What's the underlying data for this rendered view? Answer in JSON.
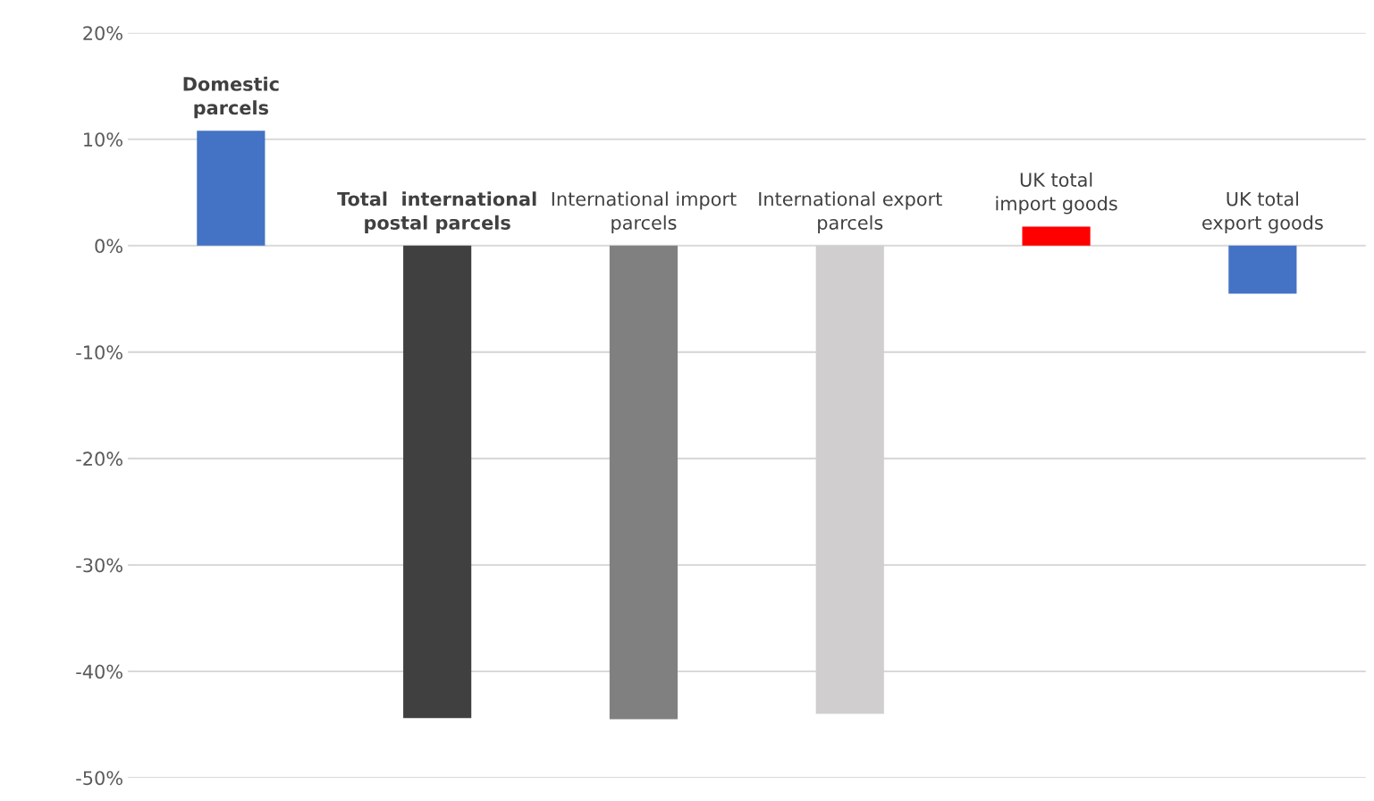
{
  "chart_data": {
    "type": "bar",
    "categories": [
      "Domestic parcels",
      "Total  international postal parcels",
      "International import parcels",
      "International export parcels",
      "UK total import goods",
      "UK total export goods"
    ],
    "values": [
      10.8,
      -44.4,
      -44.5,
      -44.0,
      1.8,
      -4.5
    ],
    "colors": [
      "#4472c4",
      "#404040",
      "#808080",
      "#d0cece",
      "#ff0000",
      "#4472c4"
    ],
    "ylim": [
      -50,
      20
    ],
    "yticks": [
      {
        "value": -50,
        "label": "-50%"
      },
      {
        "value": -40,
        "label": "-40%"
      },
      {
        "value": -30,
        "label": "-30%"
      },
      {
        "value": -20,
        "label": "-20%"
      },
      {
        "value": -10,
        "label": "-10%"
      },
      {
        "value": 0,
        "label": "0%"
      },
      {
        "value": 10,
        "label": "10%"
      },
      {
        "value": 20,
        "label": "20%"
      }
    ],
    "grid": "y",
    "tick_labels": "y"
  }
}
